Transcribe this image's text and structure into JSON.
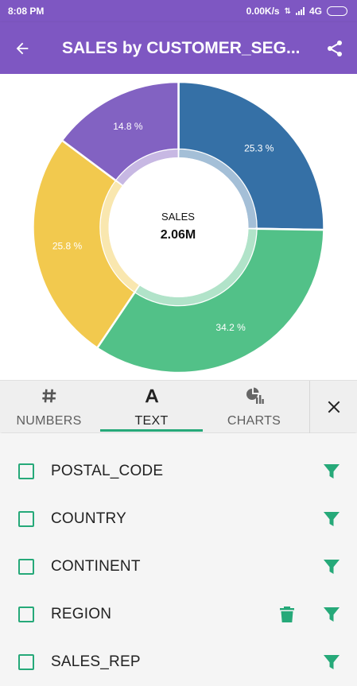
{
  "status_bar": {
    "time": "8:08 PM",
    "speed": "0.00K/s",
    "network": "4G"
  },
  "app_bar": {
    "title": "SALES by CUSTOMER_SEG...",
    "back_icon": "arrow-left-icon",
    "share_icon": "share-icon"
  },
  "chart_data": {
    "type": "pie",
    "variant": "donut",
    "center_label": "SALES",
    "center_value": "2.06M",
    "slices": [
      {
        "label": "25.3 %",
        "value": 25.3,
        "color": "#3570a6"
      },
      {
        "label": "34.2 %",
        "value": 34.2,
        "color": "#52c188"
      },
      {
        "label": "25.8 %",
        "value": 25.8,
        "color": "#f2c94e"
      },
      {
        "label": "14.8 %",
        "value": 14.8,
        "color": "#8262c2"
      }
    ]
  },
  "tabs": [
    {
      "label": "NUMBERS",
      "icon": "hash-icon",
      "active": false
    },
    {
      "label": "TEXT",
      "icon": "text-a-icon",
      "active": true
    },
    {
      "label": "CHARTS",
      "icon": "chart-icon",
      "active": false
    }
  ],
  "close_icon": "close-icon",
  "fields": [
    {
      "label": "POSTAL_CODE",
      "checked": false,
      "trash": false
    },
    {
      "label": "COUNTRY",
      "checked": false,
      "trash": false
    },
    {
      "label": "CONTINENT",
      "checked": false,
      "trash": false
    },
    {
      "label": "REGION",
      "checked": false,
      "trash": true
    },
    {
      "label": "SALES_REP",
      "checked": false,
      "trash": false
    }
  ],
  "colors": {
    "primary": "#7e57c2",
    "accent": "#26a979"
  }
}
